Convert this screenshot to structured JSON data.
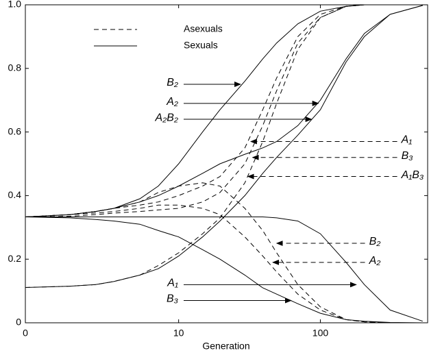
{
  "chart_data": {
    "type": "line",
    "x_label": "Generation",
    "xscale": "log1p",
    "xlim": [
      0,
      540
    ],
    "xticks": [
      0,
      10,
      100
    ],
    "ylim": [
      0,
      1
    ],
    "yticks": [
      0,
      0.2,
      0.4,
      0.6,
      0.8,
      {
        "value": 1,
        "label": "1.0"
      }
    ],
    "color": "#000000",
    "legend": [
      {
        "name": "Asexuals",
        "style": "dashed"
      },
      {
        "name": "Sexuals",
        "style": "solid"
      }
    ],
    "x": [
      0,
      1,
      2,
      3,
      5,
      7,
      10,
      15,
      20,
      30,
      40,
      50,
      70,
      100,
      150,
      200,
      300,
      500
    ],
    "series": [
      {
        "style": "solid",
        "values": [
          0.333,
          0.34,
          0.35,
          0.36,
          0.39,
          0.43,
          0.5,
          0.6,
          0.67,
          0.76,
          0.83,
          0.88,
          0.94,
          0.98,
          0.995,
          1,
          1,
          1
        ]
      },
      {
        "style": "solid",
        "values": [
          0.333,
          0.34,
          0.35,
          0.36,
          0.38,
          0.4,
          0.43,
          0.47,
          0.5,
          0.53,
          0.55,
          0.57,
          0.62,
          0.7,
          0.83,
          0.91,
          0.97,
          0.998
        ]
      },
      {
        "style": "solid",
        "values": [
          0.111,
          0.115,
          0.12,
          0.13,
          0.15,
          0.17,
          0.21,
          0.27,
          0.32,
          0.4,
          0.47,
          0.52,
          0.59,
          0.67,
          0.82,
          0.9,
          0.97,
          0.998
        ]
      },
      {
        "style": "solid",
        "values": [
          0.333,
          0.333,
          0.333,
          0.333,
          0.333,
          0.333,
          0.333,
          0.333,
          0.333,
          0.333,
          0.333,
          0.33,
          0.32,
          0.28,
          0.19,
          0.12,
          0.04,
          0.005
        ]
      },
      {
        "style": "solid",
        "values": [
          0.333,
          0.33,
          0.325,
          0.32,
          0.31,
          0.29,
          0.27,
          0.23,
          0.2,
          0.15,
          0.11,
          0.09,
          0.06,
          0.03,
          0.01,
          0.005,
          0.001,
          0
        ]
      },
      {
        "style": "dashed",
        "values": [
          0.333,
          0.34,
          0.35,
          0.36,
          0.37,
          0.38,
          0.4,
          0.43,
          0.46,
          0.55,
          0.67,
          0.77,
          0.9,
          0.97,
          0.995,
          1,
          1,
          1
        ]
      },
      {
        "style": "dashed",
        "values": [
          0.333,
          0.335,
          0.34,
          0.345,
          0.35,
          0.355,
          0.36,
          0.38,
          0.41,
          0.5,
          0.62,
          0.73,
          0.88,
          0.96,
          0.995,
          1,
          1,
          1
        ]
      },
      {
        "style": "dashed",
        "values": [
          0.111,
          0.115,
          0.12,
          0.13,
          0.15,
          0.18,
          0.22,
          0.28,
          0.33,
          0.44,
          0.57,
          0.69,
          0.86,
          0.96,
          0.995,
          1,
          1,
          1
        ]
      },
      {
        "style": "dashed",
        "values": [
          0.333,
          0.34,
          0.35,
          0.36,
          0.38,
          0.41,
          0.43,
          0.44,
          0.43,
          0.36,
          0.29,
          0.22,
          0.12,
          0.05,
          0.01,
          0.003,
          0,
          0
        ]
      },
      {
        "style": "dashed",
        "values": [
          0.333,
          0.34,
          0.345,
          0.35,
          0.36,
          0.37,
          0.37,
          0.36,
          0.34,
          0.27,
          0.21,
          0.16,
          0.09,
          0.04,
          0.01,
          0.003,
          0,
          0
        ]
      }
    ],
    "annotations": [
      {
        "text": "B₂",
        "style": "solid",
        "x_from": 10.9,
        "x_to": 28,
        "y": 0.75
      },
      {
        "text": "A₂",
        "style": "solid",
        "x_from": 10.9,
        "x_to": 97,
        "y": 0.69
      },
      {
        "text": "A₂B₂",
        "style": "solid",
        "x_from": 10.9,
        "x_to": 87,
        "y": 0.64
      },
      {
        "text": "A₁",
        "style": "dashed",
        "x_from": 335,
        "x_to": 33,
        "y": 0.57
      },
      {
        "text": "B₃",
        "style": "dashed",
        "x_from": 335,
        "x_to": 34,
        "y": 0.52
      },
      {
        "text": "A₁B₃",
        "style": "dashed",
        "x_from": 335,
        "x_to": 31.5,
        "y": 0.46
      },
      {
        "text": "B₂",
        "style": "dashed",
        "x_from": 202,
        "x_to": 50,
        "y": 0.25
      },
      {
        "text": "A₂",
        "style": "dashed",
        "x_from": 202,
        "x_to": 47,
        "y": 0.19
      },
      {
        "text": "A₁",
        "style": "solid",
        "x_from": 10.9,
        "x_to": 176,
        "y": 0.12
      },
      {
        "text": "B₃",
        "style": "solid",
        "x_from": 10.9,
        "x_to": 63,
        "y": 0.07
      }
    ]
  }
}
